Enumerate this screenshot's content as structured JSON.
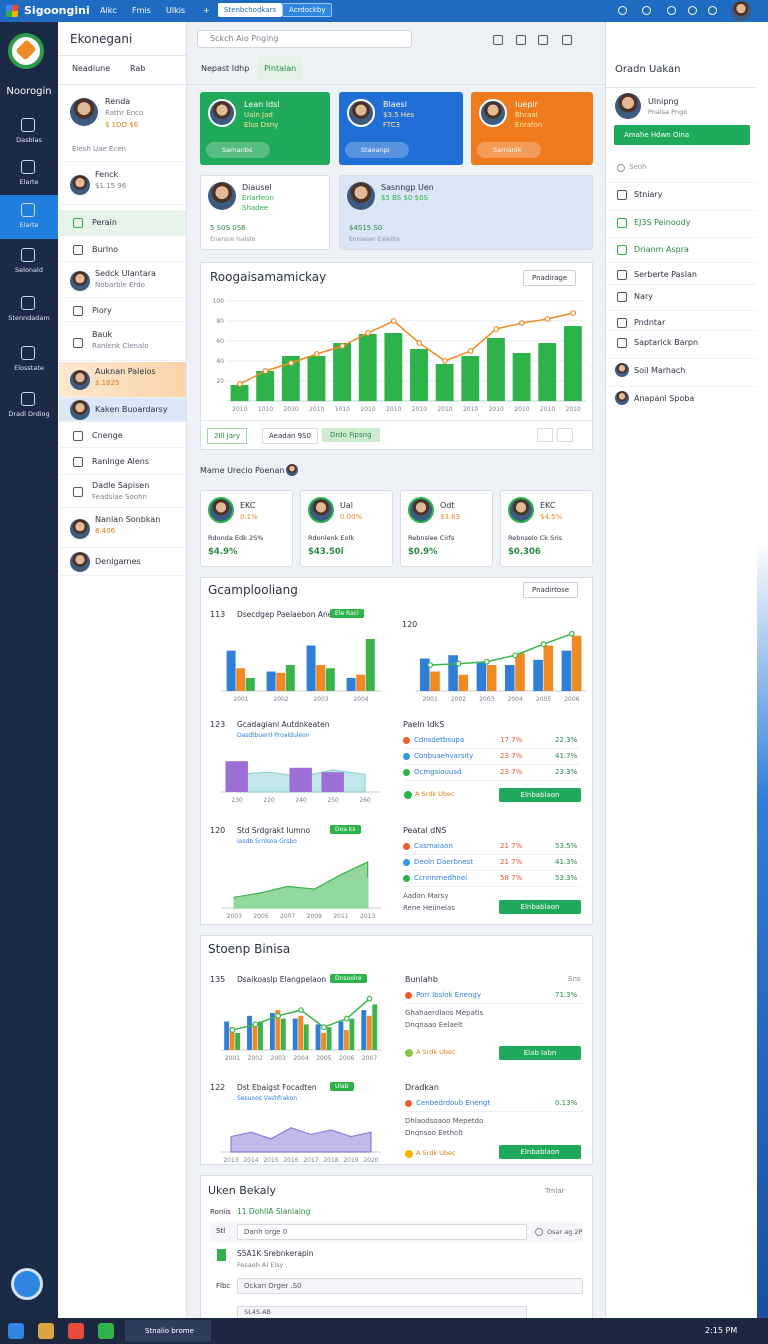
{
  "topbar": {
    "brand": "Sigoongini",
    "menu": [
      "Alkc",
      "Fmis",
      "Ulkis",
      "+"
    ],
    "buttons": [
      "Stenbchodkars",
      "Acrdockby"
    ]
  },
  "sidebar": {
    "title": "Noorogin",
    "items": [
      "Dasblas",
      "Elarte",
      "Elarte",
      "Selonald",
      "Stenndadam",
      "Elosstate",
      "Dradl Drdiog"
    ],
    "active": 2
  },
  "list": {
    "title": "Ekonegani",
    "tabs": [
      "Neadiune",
      "Rab"
    ],
    "items": [
      {
        "name": "Renda",
        "lines": [
          "Rathr Enco",
          "$ 1DO $6",
          "Elesh Uae Ecen"
        ]
      },
      {
        "name": "Fenck",
        "lines": [
          "$1.15 96"
        ]
      },
      {
        "name": "Perain",
        "lines": []
      },
      {
        "name": "Burlno",
        "lines": []
      },
      {
        "name": "Sedck Ulantara",
        "lines": [
          "Nobarble Erdo"
        ]
      },
      {
        "name": "Piory",
        "lines": []
      },
      {
        "name": "Bauk",
        "lines": [
          "Ranlenk Clenalo"
        ]
      },
      {
        "name": "Auknan Paleios",
        "lines": [
          "$.1825"
        ]
      },
      {
        "name": "Kaken Buoardarsy",
        "lines": []
      },
      {
        "name": "Cnenge",
        "lines": []
      },
      {
        "name": "Ranlnge Alens",
        "lines": []
      },
      {
        "name": "Dadle Sapisen",
        "lines": [
          "Feadslae Soohn"
        ]
      },
      {
        "name": "Nanlan Sonbkan",
        "lines": [
          "8.406"
        ]
      },
      {
        "name": "Denlgarnes",
        "lines": []
      }
    ]
  },
  "main": {
    "search": "Sckch Alo Pnging",
    "tabs": [
      "Nepast Idhp",
      "Pintalan"
    ],
    "cards": [
      {
        "title": "Lean Idsl",
        "lines": [
          "Ualn Jad",
          "Elus Dsny"
        ],
        "foot": "Sarnanbs"
      },
      {
        "title": "Blaesl",
        "lines": [
          "$3.5 Hes",
          "FTC3"
        ],
        "foot": "Staeanpi"
      },
      {
        "title": "Iueplr",
        "lines": [
          "Bhraal",
          "Enrafon"
        ],
        "foot": "Sarnanlk"
      }
    ],
    "cards2": [
      {
        "title": "Diausel",
        "lines": [
          "Erlarfeon",
          "Shadee"
        ],
        "foot": "5 S0S 0S6",
        "sub": "Enensre lsalsto"
      },
      {
        "title": "Sasnngp Uen",
        "lines": [
          "$5 BS $0 $0S"
        ],
        "foot": "$4S15.S0",
        "sub": "Enrseoer Ealeilte"
      }
    ],
    "overview": {
      "title": "Roogaisamamickay",
      "button": "Pnadirage",
      "chips": [
        "2Ill Jary",
        "Aeadan 9S0",
        "Drdo Fipsng"
      ],
      "chart": {
        "type": "bar",
        "categories": [
          "2010",
          "1010",
          "2030",
          "2010",
          "1010",
          "2010",
          "2010",
          "2010",
          "2010",
          "2010",
          "2010",
          "2010",
          "2010",
          "2010"
        ],
        "ylim": [
          0,
          100
        ],
        "yticks": [
          20,
          40,
          60,
          80,
          100
        ],
        "series": [
          {
            "kind": "bar",
            "color": "#2db34a",
            "values": [
              16,
              30,
              45,
              45,
              58,
              67,
              68,
              52,
              37,
              45,
              63,
              48,
              58,
              75
            ]
          },
          {
            "kind": "line",
            "color": "#f08a24",
            "values": [
              17,
              30,
              38,
              47,
              55,
              68,
              80,
              58,
              40,
              50,
              72,
              78,
              82,
              88
            ]
          }
        ]
      }
    },
    "people": {
      "title": "Mame Urecio Poenan",
      "cards": [
        {
          "name": "EKC",
          "value": "0.1%",
          "label": "Rdonda Edk 2S%",
          "amount": "$4.9%"
        },
        {
          "name": "Ual",
          "value": "0.00%",
          "label": "Rdonlenk Eolk",
          "amount": "$43.50i"
        },
        {
          "name": "Odt",
          "value": "$3.63",
          "label": "Rebnslee Cirfs",
          "amount": "$0.9%"
        },
        {
          "name": "EKC",
          "value": "$4.5%",
          "label": "Rebnselo Ck Sris",
          "amount": "$0.306"
        }
      ]
    },
    "analytics": {
      "title": "Gcamplooliang",
      "button": "Pnadirtose",
      "charts": [
        {
          "type": "bar",
          "label": "113",
          "title": "Dsecdgep Paelaebon Anenu",
          "badge": "Ele Raci",
          "categories": [
            "2001",
            "2002",
            "2003",
            "2004"
          ],
          "ylim": [
            0,
            100
          ],
          "series": [
            {
              "kind": "bar",
              "color": "#2f7fd8",
              "values": [
                62,
                30,
                70,
                20
              ]
            },
            {
              "kind": "bar",
              "color": "#f08a24",
              "values": [
                35,
                28,
                40,
                25
              ]
            },
            {
              "kind": "bar",
              "color": "#3cb44b",
              "values": [
                20,
                40,
                35,
                80
              ]
            }
          ]
        },
        {
          "type": "bar",
          "label": "120",
          "categories": [
            "2001",
            "2002",
            "2003",
            "2004",
            "2005",
            "2006"
          ],
          "ylim": [
            0,
            100
          ],
          "series": [
            {
              "kind": "bar",
              "color": "#2f7fd8",
              "values": [
                50,
                55,
                45,
                40,
                48,
                62
              ]
            },
            {
              "kind": "bar",
              "color": "#f08a24",
              "values": [
                30,
                25,
                40,
                58,
                70,
                85
              ]
            },
            {
              "kind": "line",
              "color": "#3cb44b",
              "values": [
                40,
                42,
                45,
                55,
                72,
                88
              ]
            }
          ]
        },
        {
          "type": "area",
          "label": "123",
          "title": "Gcadagianl Autdnkeaten",
          "sub": "Dasdtbuerrl Proalduleon",
          "categories": [
            "230",
            "220",
            "240",
            "250",
            "260"
          ],
          "ylim": [
            0,
            100
          ],
          "series": [
            {
              "kind": "area",
              "color": "#8fd3d8",
              "values": [
                40,
                45,
                35,
                50,
                40
              ]
            },
            {
              "kind": "bar",
              "color": "#9c6fd6",
              "values": [
                70,
                null,
                55,
                45,
                null
              ]
            }
          ]
        },
        {
          "type": "area",
          "label": "120",
          "title": "Std Srdgrakt Iumno",
          "badge": "Dea ks",
          "sub": "Iasdb Srnlsoa Grsbo",
          "categories": [
            "2003",
            "2005",
            "2007",
            "2009",
            "2011",
            "2013"
          ],
          "ylim": [
            0,
            100
          ],
          "series": [
            {
              "kind": "area",
              "color": "#3cb44b",
              "values": [
                20,
                28,
                40,
                35,
                62,
                85
              ]
            },
            {
              "kind": "area",
              "color": "#8fdca0",
              "values": [
                15,
                20,
                30,
                30,
                45,
                55
              ]
            }
          ]
        }
      ],
      "lists": [
        {
          "title": "Paeln IdkS",
          "rows": [
            [
              "Cdnsdetbsupa",
              "17 7%",
              "22.3%"
            ],
            [
              "Conbuaehvarsity",
              "23 7%",
              "41.7%"
            ],
            [
              "Ocmgsiouusd",
              "23 7%",
              "23.3%"
            ]
          ],
          "chip": "A Srdk Ubec",
          "button": "Elnbablaon"
        },
        {
          "title": "Peatal dNS",
          "rows": [
            [
              "Casmaiaon",
              "21 7%",
              "53.5%"
            ],
            [
              "Deoln Daerbnest",
              "21 7%",
              "41.3%"
            ],
            [
              "Ccnnnrnedhnel",
              "58 7%",
              "53.3%"
            ]
          ],
          "lines": [
            "Aadon Marsy",
            "Rene Heiinelas"
          ],
          "button": "Elnbablaon"
        }
      ]
    },
    "growth": {
      "title": "Stoenp Binisa",
      "charts": [
        {
          "type": "bar",
          "label": "135",
          "title": "Dsaikoaslp Elangpelaon",
          "badge": "Dnsoolre",
          "categories": [
            "2001",
            "2002",
            "2003",
            "2004",
            "2005",
            "2006",
            "2007"
          ],
          "ylim": [
            0,
            100
          ],
          "series": [
            {
              "kind": "bar",
              "color": "#2f7fd8",
              "values": [
                50,
                60,
                65,
                55,
                45,
                50,
                70
              ]
            },
            {
              "kind": "bar",
              "color": "#f08a24",
              "values": [
                40,
                45,
                70,
                60,
                30,
                35,
                60
              ]
            },
            {
              "kind": "bar",
              "color": "#3cb44b",
              "values": [
                30,
                50,
                55,
                45,
                40,
                55,
                80
              ]
            },
            {
              "kind": "line",
              "color": "#3cb44b",
              "values": [
                35,
                45,
                60,
                70,
                40,
                55,
                90
              ]
            }
          ]
        },
        {
          "type": "area",
          "label": "122",
          "title": "Dst Ebaigst Focadten",
          "badge": "Ulab",
          "sub": "Sesuoos Vasbfrakon",
          "categories": [
            "2013",
            "2014",
            "2015",
            "2016",
            "2017",
            "2018",
            "2019",
            "2020"
          ],
          "ylim": [
            0,
            100
          ],
          "series": [
            {
              "kind": "area",
              "color": "#8c7fd8",
              "values": [
                35,
                45,
                30,
                55,
                40,
                50,
                35,
                45
              ]
            }
          ]
        }
      ],
      "lists": [
        {
          "title": "Bunlahb",
          "right": "Sns",
          "rows": [
            [
              "Porr Ibslok Enengy",
              "71.3%"
            ]
          ],
          "lines": [
            "Ghahaerdlaos Mepatls",
            "Dnqnaao Eelaelt"
          ],
          "chip": "A Srdk Ubec",
          "button": "Elab Iabn"
        },
        {
          "title": "Dradkan",
          "rows": [
            [
              "Cenbedrdoub Enengt",
              "0.13%"
            ]
          ],
          "lines": [
            "Dhlaodsoaoo Mepetdo",
            "Dnqnsoo Eetholt"
          ],
          "chip": "A Srdk Ubec",
          "button": "Elnbablaon"
        }
      ]
    },
    "table": {
      "title": "Uken Bekaly",
      "right": "Trnlar",
      "label": "Roniis",
      "highlight": "11 DohlIA Slanlaing",
      "rows": [
        {
          "tag": "Stl",
          "text": "Danh orge 0",
          "right": "Osar ag 2P"
        },
        {
          "text": "S5A1K Srebnkerapin",
          "sub": "Fesaeh Al Elsy"
        },
        {
          "tag": "Flbc",
          "text": "Ockan Orger .S0"
        },
        {
          "text": "SL4S.AB"
        }
      ]
    }
  },
  "right": {
    "title": "Oradn Uakan",
    "user": {
      "name": "Ulnipng",
      "sub": "Pnalsa Pngo"
    },
    "button": "Amahe Hdwn Oina",
    "search": "Seoh",
    "items": [
      "Stniary",
      "EJ3S Peinoody",
      "Drianm Aspra",
      "Serberte Paslan",
      "Nary",
      "Pndntar",
      "Saptarick Barpn",
      "Soil Marhach",
      "Anapani Spoba"
    ]
  },
  "taskbar": {
    "app": "Stnalio brome",
    "clock": "2:15 PM"
  }
}
